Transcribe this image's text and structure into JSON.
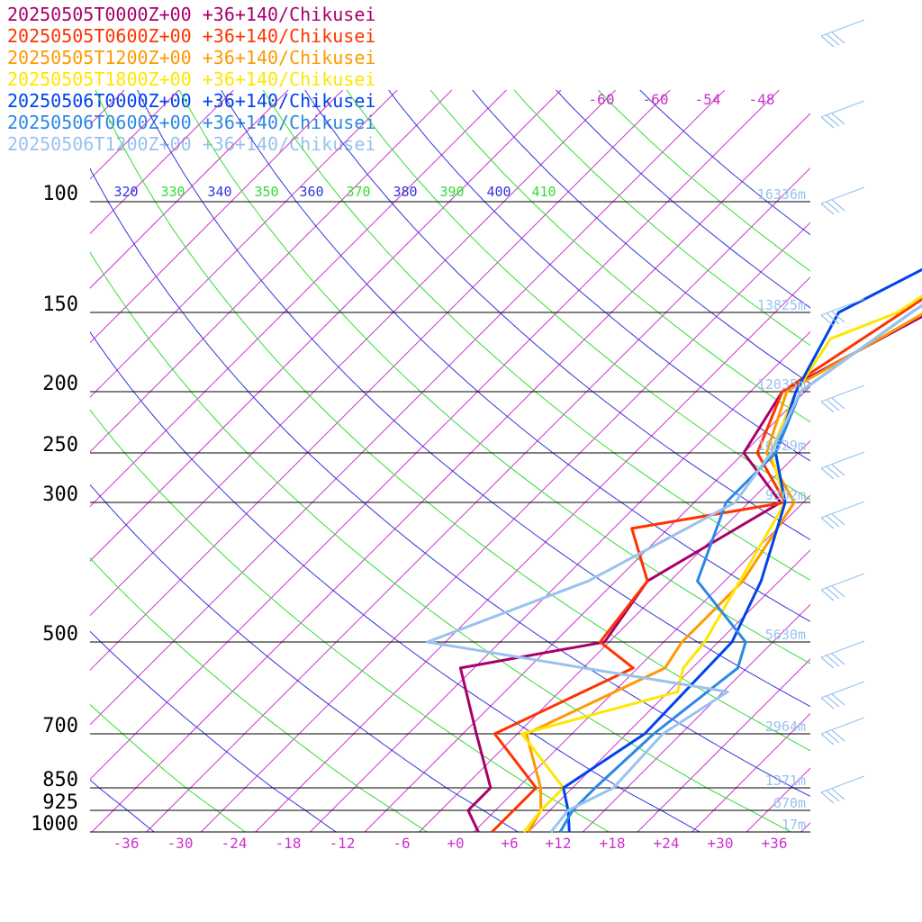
{
  "chart_data": {
    "type": "line",
    "xlabel": "",
    "ylabel": "",
    "pressure_levels": [
      100,
      150,
      200,
      250,
      300,
      500,
      700,
      850,
      925,
      1000
    ],
    "temperature_ticks": [
      "-36",
      "-30",
      "-24",
      "-18",
      "-12",
      "-6",
      "+0",
      "+6",
      "+12",
      "+18",
      "+24",
      "+30",
      "+36"
    ],
    "upper_temperature_labels": [
      "-60",
      "-60",
      "-54",
      "-48"
    ],
    "theta_labels": [
      "320",
      "330",
      "340",
      "350",
      "360",
      "370",
      "380",
      "390",
      "400",
      "410"
    ],
    "height_labels": [
      "16336m",
      "13825m",
      "12035m",
      "10529m",
      "9362m",
      "5630m",
      "2964m",
      "1371m",
      "670m",
      "17m"
    ],
    "colors": {
      "magenta": "#cc33cc",
      "theta_blue": "#3333dd",
      "theta_green": "#33dd33",
      "height_label": "#99c2ee",
      "isobar": "#000000"
    },
    "series": [
      {
        "name": "20250505T0000Z+00 +36+140/Chikusei",
        "color": "#a8006b",
        "points": [
          [
            150,
            -5
          ],
          [
            200,
            -12.5
          ],
          [
            250,
            -10
          ],
          [
            300,
            -0.5
          ],
          [
            400,
            -6.5
          ],
          [
            500,
            -4.5
          ],
          [
            550,
            -17.5
          ],
          [
            700,
            -8.5
          ],
          [
            850,
            -1
          ],
          [
            925,
            -1
          ],
          [
            1000,
            2.5
          ]
        ]
      },
      {
        "name": "20250505T0600Z+00 +36+140/Chikusei",
        "color": "#ff3300",
        "points": [
          [
            150,
            -8
          ],
          [
            200,
            -12.5
          ],
          [
            250,
            -8.5
          ],
          [
            300,
            0
          ],
          [
            330,
            -14
          ],
          [
            400,
            -6.5
          ],
          [
            500,
            -5
          ],
          [
            550,
            1.5
          ],
          [
            700,
            -6.5
          ],
          [
            850,
            4
          ],
          [
            925,
            4
          ],
          [
            1000,
            4
          ]
        ]
      },
      {
        "name": "20250505T1200Z+00 +36+140/Chikusei",
        "color": "#ff9900",
        "points": [
          [
            150,
            -5.5
          ],
          [
            200,
            -12
          ],
          [
            250,
            -7.5
          ],
          [
            300,
            1
          ],
          [
            400,
            4
          ],
          [
            500,
            4
          ],
          [
            550,
            5
          ],
          [
            700,
            -3
          ],
          [
            850,
            4.5
          ],
          [
            925,
            7
          ],
          [
            1000,
            8
          ]
        ]
      },
      {
        "name": "20250505T1800Z+00 +36+140/Chikusei",
        "color": "#ffe600",
        "points": [
          [
            150,
            -8.5
          ],
          [
            165,
            -13
          ],
          [
            200,
            -11
          ],
          [
            250,
            -7
          ],
          [
            300,
            0
          ],
          [
            500,
            6.5
          ],
          [
            550,
            7
          ],
          [
            600,
            9
          ],
          [
            700,
            -3.5
          ],
          [
            850,
            7
          ],
          [
            925,
            7
          ],
          [
            1000,
            7.5
          ]
        ]
      },
      {
        "name": "20250506T0000Z+00 +36+140/Chikusei",
        "color": "#0044ee",
        "points": [
          [
            100,
            -3.5
          ],
          [
            150,
            -15
          ],
          [
            200,
            -11
          ],
          [
            250,
            -6.5
          ],
          [
            300,
            0
          ],
          [
            400,
            6
          ],
          [
            500,
            9.5
          ],
          [
            700,
            10
          ],
          [
            850,
            7
          ],
          [
            925,
            10
          ],
          [
            1000,
            12.5
          ]
        ]
      },
      {
        "name": "20250506T0600Z+00 +36+140/Chikusei",
        "color": "#2a88e6",
        "points": [
          [
            150,
            -7
          ],
          [
            200,
            -10.5
          ],
          [
            250,
            -6.5
          ],
          [
            300,
            -6.5
          ],
          [
            400,
            -1
          ],
          [
            500,
            11
          ],
          [
            550,
            13
          ],
          [
            700,
            11
          ],
          [
            850,
            10.5
          ],
          [
            925,
            10.5
          ],
          [
            1000,
            11.5
          ]
        ]
      },
      {
        "name": "20250506T1200Z+00 +36+140/Chikusei",
        "color": "#99c2ee",
        "points": [
          [
            150,
            -7
          ],
          [
            200,
            -10.5
          ],
          [
            250,
            -7
          ],
          [
            300,
            -5.5
          ],
          [
            400,
            -13
          ],
          [
            500,
            -24
          ],
          [
            600,
            14.5
          ],
          [
            700,
            12
          ],
          [
            850,
            12.5
          ],
          [
            925,
            10
          ],
          [
            1000,
            10.5
          ]
        ]
      }
    ]
  }
}
